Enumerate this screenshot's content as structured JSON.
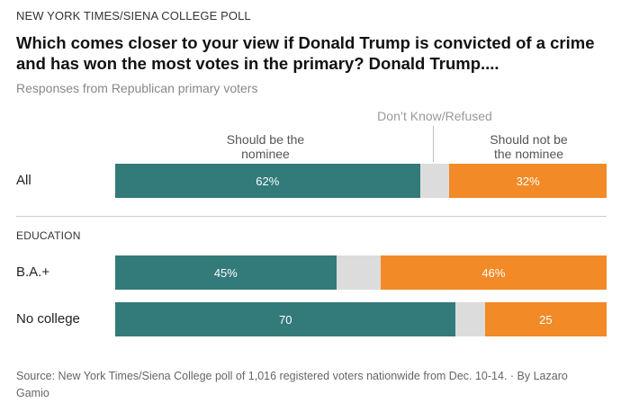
{
  "header": {
    "kicker": "NEW YORK TIMES/SIENA COLLEGE POLL",
    "title": "Which comes closer to your view if Donald Trump is convicted of a crime and has won the most votes in the primary? Donald Trump....",
    "subtitle": "Responses from Republican primary voters"
  },
  "columns": {
    "nominee": [
      "Should be the",
      "nominee"
    ],
    "dont_know": "Don’t Know/Refused",
    "not_nominee": [
      "Should not be",
      "the nominee"
    ]
  },
  "colors": {
    "nominee": "#337a7a",
    "dont_know": "#dcdcdc",
    "not_nominee": "#f28a27"
  },
  "group_label": "EDUCATION",
  "footer": {
    "source": "Source: New York Times/Siena College poll of 1,016 registered voters nationwide from Dec. 10-14.  ·  By Lazaro Gamio"
  },
  "chart_data": {
    "type": "bar",
    "stacked": true,
    "orientation": "horizontal",
    "categories": [
      "All",
      "B.A.+",
      "No college"
    ],
    "series": [
      {
        "name": "Should be the nominee",
        "values": [
          62,
          45,
          70
        ],
        "labels": [
          "62%",
          "45%",
          "70"
        ]
      },
      {
        "name": "Don’t Know/Refused",
        "values": [
          6,
          9,
          6
        ],
        "labels": [
          "",
          "",
          ""
        ]
      },
      {
        "name": "Should not be the nominee",
        "values": [
          32,
          46,
          25
        ],
        "labels": [
          "32%",
          "46%",
          "25"
        ]
      }
    ],
    "xlim": [
      0,
      100
    ]
  }
}
